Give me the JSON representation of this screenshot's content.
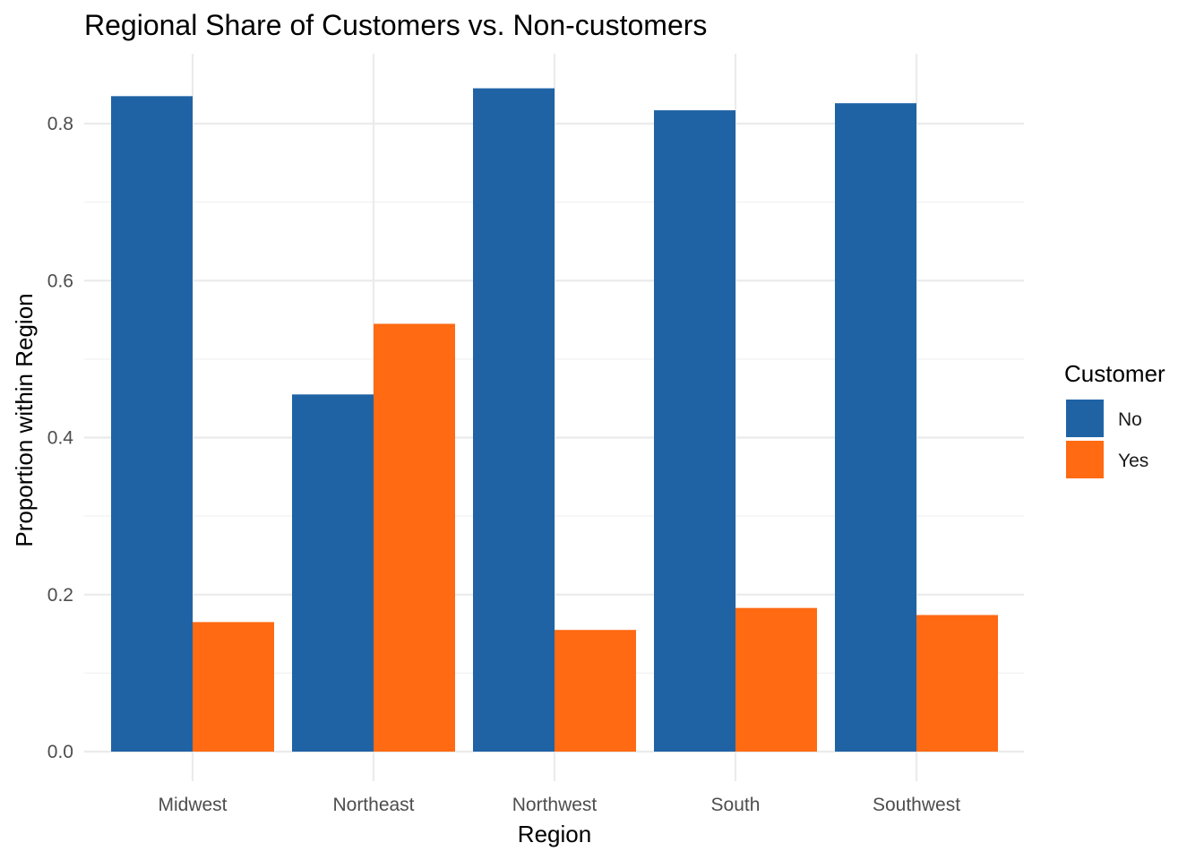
{
  "chart_data": {
    "type": "bar",
    "title": "Regional Share of Customers vs. Non-customers",
    "xlabel": "Region",
    "ylabel": "Proportion within Region",
    "categories": [
      "Midwest",
      "Northeast",
      "Northwest",
      "South",
      "Southwest"
    ],
    "series": [
      {
        "name": "No",
        "color": "#1F63A5",
        "values": [
          0.835,
          0.455,
          0.845,
          0.817,
          0.826
        ]
      },
      {
        "name": "Yes",
        "color": "#FF6A13",
        "values": [
          0.165,
          0.545,
          0.155,
          0.183,
          0.174
        ]
      }
    ],
    "ylim": [
      0,
      0.88
    ],
    "y_ticks": [
      0.0,
      0.2,
      0.4,
      0.6,
      0.8
    ],
    "y_tick_labels": [
      "0.0",
      "0.2",
      "0.4",
      "0.6",
      "0.8"
    ],
    "grid": true,
    "legend": {
      "title": "Customer",
      "position": "right"
    }
  }
}
